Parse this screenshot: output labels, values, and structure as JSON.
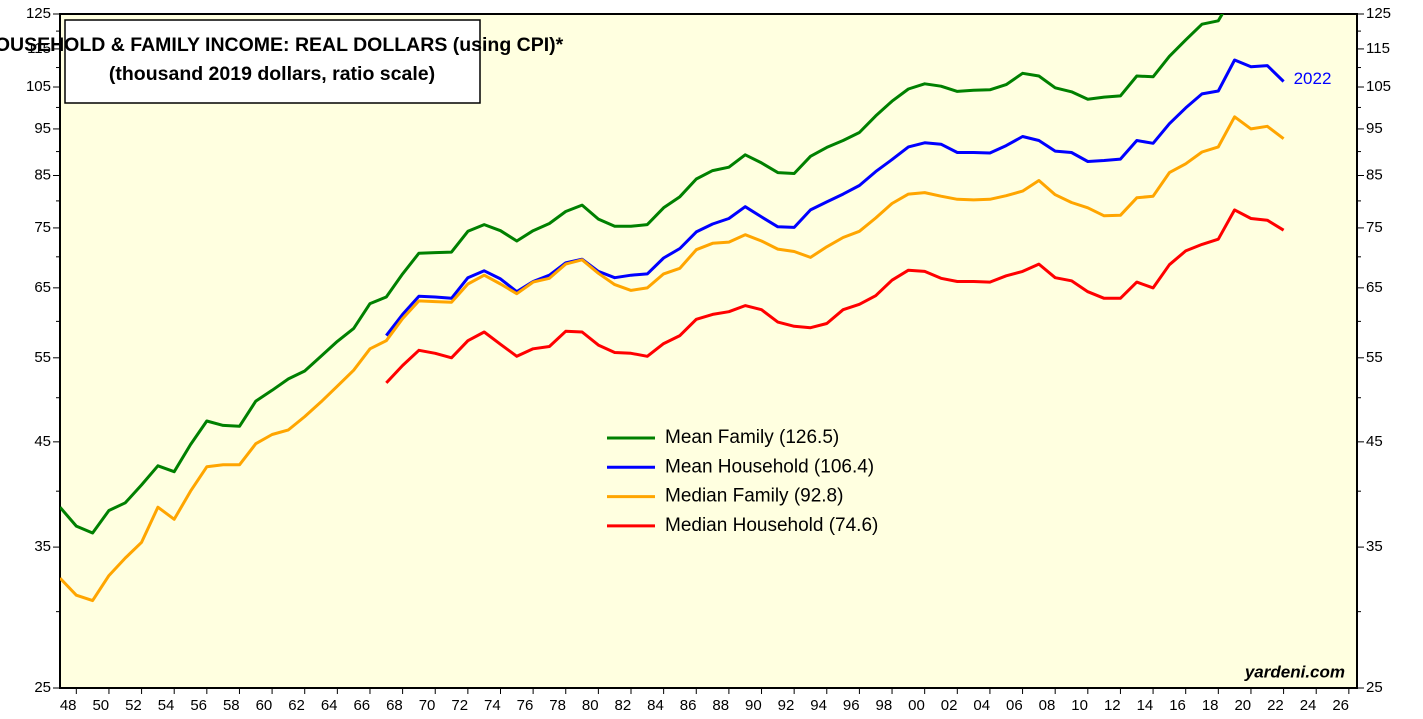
{
  "chart_data": {
    "type": "line",
    "title": "HOUSEHOLD & FAMILY INCOME: REAL DOLLARS (using CPI)*",
    "subtitle": "(thousand 2019 dollars, ratio scale)",
    "annotations": [
      "2022"
    ],
    "source": "yardeni.com",
    "log_scale": true,
    "grid": false,
    "xlim": [
      1947,
      2026.5
    ],
    "ylim": [
      25,
      125
    ],
    "yticks": [
      25,
      35,
      45,
      55,
      65,
      75,
      85,
      95,
      105,
      115,
      125
    ],
    "yminor": [
      30,
      40,
      50,
      60,
      70,
      80,
      90,
      100,
      110,
      120
    ],
    "xticks": [
      {
        "value": 1948,
        "label": "48"
      },
      {
        "value": 1950,
        "label": "50"
      },
      {
        "value": 1952,
        "label": "52"
      },
      {
        "value": 1954,
        "label": "54"
      },
      {
        "value": 1956,
        "label": "56"
      },
      {
        "value": 1958,
        "label": "58"
      },
      {
        "value": 1960,
        "label": "60"
      },
      {
        "value": 1962,
        "label": "62"
      },
      {
        "value": 1964,
        "label": "64"
      },
      {
        "value": 1966,
        "label": "66"
      },
      {
        "value": 1968,
        "label": "68"
      },
      {
        "value": 1970,
        "label": "70"
      },
      {
        "value": 1972,
        "label": "72"
      },
      {
        "value": 1974,
        "label": "74"
      },
      {
        "value": 1976,
        "label": "76"
      },
      {
        "value": 1978,
        "label": "78"
      },
      {
        "value": 1980,
        "label": "80"
      },
      {
        "value": 1982,
        "label": "82"
      },
      {
        "value": 1984,
        "label": "84"
      },
      {
        "value": 1986,
        "label": "86"
      },
      {
        "value": 1988,
        "label": "88"
      },
      {
        "value": 1990,
        "label": "90"
      },
      {
        "value": 1992,
        "label": "92"
      },
      {
        "value": 1994,
        "label": "94"
      },
      {
        "value": 1996,
        "label": "96"
      },
      {
        "value": 1998,
        "label": "98"
      },
      {
        "value": 2000,
        "label": "00"
      },
      {
        "value": 2002,
        "label": "02"
      },
      {
        "value": 2004,
        "label": "04"
      },
      {
        "value": 2006,
        "label": "06"
      },
      {
        "value": 2008,
        "label": "08"
      },
      {
        "value": 2010,
        "label": "10"
      },
      {
        "value": 2012,
        "label": "12"
      },
      {
        "value": 2014,
        "label": "14"
      },
      {
        "value": 2016,
        "label": "16"
      },
      {
        "value": 2018,
        "label": "18"
      },
      {
        "value": 2020,
        "label": "20"
      },
      {
        "value": 2022,
        "label": "22"
      },
      {
        "value": 2024,
        "label": "24"
      },
      {
        "value": 2026,
        "label": "26"
      }
    ],
    "x": [
      1947,
      1948,
      1949,
      1950,
      1951,
      1952,
      1953,
      1954,
      1955,
      1956,
      1957,
      1958,
      1959,
      1960,
      1961,
      1962,
      1963,
      1964,
      1965,
      1966,
      1967,
      1968,
      1969,
      1970,
      1971,
      1972,
      1973,
      1974,
      1975,
      1976,
      1977,
      1978,
      1979,
      1980,
      1981,
      1982,
      1983,
      1984,
      1985,
      1986,
      1987,
      1988,
      1989,
      1990,
      1991,
      1992,
      1993,
      1994,
      1995,
      1996,
      1997,
      1998,
      1999,
      2000,
      2001,
      2002,
      2003,
      2004,
      2005,
      2006,
      2007,
      2008,
      2009,
      2010,
      2011,
      2012,
      2013,
      2014,
      2015,
      2016,
      2017,
      2018,
      2019,
      2020,
      2021,
      2022
    ],
    "series": [
      {
        "name": "Mean Family (126.5)",
        "color": "#008000",
        "values": [
          38.5,
          36.8,
          36.2,
          38.2,
          38.9,
          40.6,
          42.5,
          41.9,
          44.7,
          47.3,
          46.8,
          46.7,
          49.6,
          50.9,
          52.3,
          53.3,
          55.2,
          57.2,
          59.0,
          62.6,
          63.6,
          67.2,
          70.6,
          70.7,
          70.8,
          74.4,
          75.6,
          74.5,
          72.7,
          74.5,
          75.8,
          78.0,
          79.2,
          76.6,
          75.3,
          75.3,
          75.6,
          78.7,
          80.8,
          84.3,
          86.0,
          86.7,
          89.3,
          87.6,
          85.6,
          85.4,
          89.0,
          90.9,
          92.4,
          94.2,
          98.0,
          101.5,
          104.5,
          105.8,
          105.2,
          103.9,
          104.2,
          104.3,
          105.6,
          108.5,
          107.8,
          104.8,
          103.8,
          102.0,
          102.5,
          102.8,
          107.8,
          107.6,
          113.0,
          117.5,
          122.0,
          123.0,
          131.5,
          128.8,
          130.0,
          126.5
        ]
      },
      {
        "name": "Mean Household (106.4)",
        "color": "#0000ff",
        "values": [
          null,
          null,
          null,
          null,
          null,
          null,
          null,
          null,
          null,
          null,
          null,
          null,
          null,
          null,
          null,
          null,
          null,
          null,
          null,
          null,
          58.0,
          61.0,
          63.7,
          63.6,
          63.4,
          66.6,
          67.7,
          66.4,
          64.4,
          66.0,
          67.0,
          69.0,
          69.6,
          67.6,
          66.6,
          67.0,
          67.2,
          69.8,
          71.4,
          74.3,
          75.7,
          76.7,
          78.9,
          77.0,
          75.2,
          75.1,
          78.3,
          79.8,
          81.3,
          83.0,
          85.8,
          88.3,
          91.0,
          91.9,
          91.6,
          89.8,
          89.8,
          89.7,
          91.3,
          93.3,
          92.4,
          90.1,
          89.8,
          87.9,
          88.1,
          88.4,
          92.4,
          91.8,
          96.2,
          99.9,
          103.3,
          104.0,
          112.0,
          110.2,
          110.5,
          106.4
        ]
      },
      {
        "name": "Median Family (92.8)",
        "color": "#ffa500",
        "values": [
          32.5,
          31.2,
          30.8,
          32.7,
          34.1,
          35.4,
          38.5,
          37.4,
          40.0,
          42.4,
          42.6,
          42.6,
          44.8,
          45.8,
          46.3,
          47.8,
          49.5,
          51.4,
          53.4,
          56.2,
          57.3,
          60.4,
          63.0,
          62.9,
          62.8,
          65.6,
          67.0,
          65.6,
          64.1,
          65.9,
          66.5,
          68.8,
          69.5,
          67.3,
          65.5,
          64.6,
          65.0,
          67.2,
          68.1,
          71.2,
          72.3,
          72.5,
          73.8,
          72.7,
          71.3,
          70.9,
          69.9,
          71.7,
          73.3,
          74.4,
          76.8,
          79.5,
          81.3,
          81.6,
          80.9,
          80.3,
          80.2,
          80.3,
          81.0,
          81.9,
          84.0,
          81.2,
          79.7,
          78.7,
          77.2,
          77.3,
          80.6,
          80.9,
          85.6,
          87.4,
          89.9,
          91.0,
          97.8,
          95.0,
          95.6,
          92.8
        ]
      },
      {
        "name": "Median Household (74.6)",
        "color": "#ff0000",
        "values": [
          null,
          null,
          null,
          null,
          null,
          null,
          null,
          null,
          null,
          null,
          null,
          null,
          null,
          null,
          null,
          null,
          null,
          null,
          null,
          null,
          51.8,
          54.0,
          56.0,
          55.6,
          55.0,
          57.3,
          58.5,
          56.8,
          55.2,
          56.2,
          56.5,
          58.6,
          58.5,
          56.7,
          55.7,
          55.6,
          55.2,
          56.9,
          58.0,
          60.3,
          61.0,
          61.4,
          62.3,
          61.7,
          59.9,
          59.3,
          59.1,
          59.7,
          61.7,
          62.5,
          63.8,
          66.2,
          67.8,
          67.6,
          66.5,
          66.0,
          66.0,
          65.9,
          66.9,
          67.6,
          68.8,
          66.6,
          66.1,
          64.4,
          63.4,
          63.4,
          65.9,
          65.0,
          68.7,
          71.0,
          72.1,
          73.0,
          78.3,
          76.7,
          76.4,
          74.6
        ]
      }
    ]
  }
}
